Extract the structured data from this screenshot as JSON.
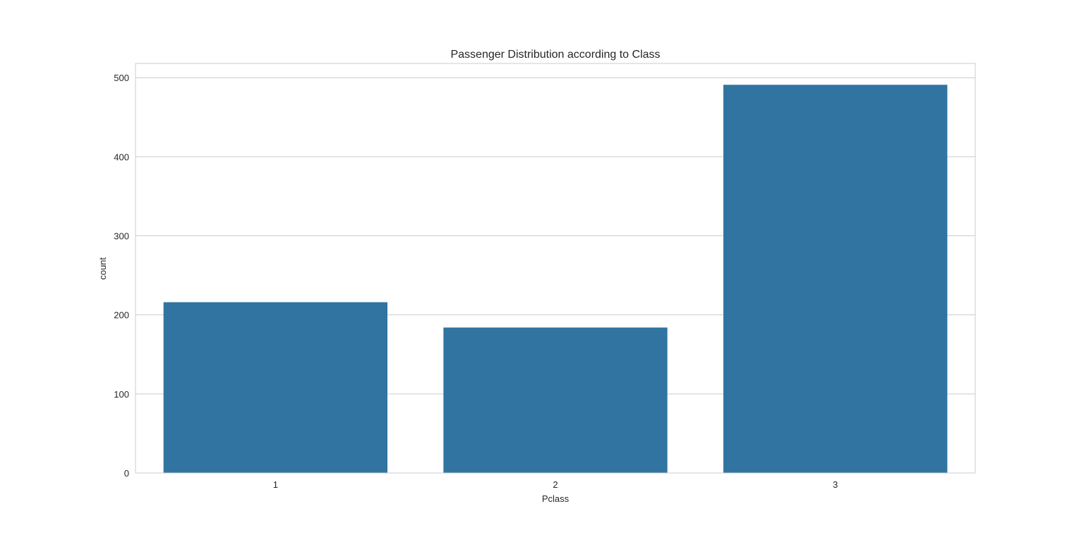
{
  "chart_data": {
    "type": "bar",
    "title": "Passenger Distribution according to Class",
    "xlabel": "Pclass",
    "ylabel": "count",
    "categories": [
      "1",
      "2",
      "3"
    ],
    "values": [
      216,
      184,
      491
    ],
    "ylim": [
      0,
      518
    ],
    "yticks": [
      0,
      100,
      200,
      300,
      400,
      500
    ],
    "grid": true,
    "legend": "none",
    "colors": {
      "bar": "#3274a1",
      "grid": "#cccccc",
      "frame": "#cccccc",
      "text": "#262626",
      "background": "#ffffff"
    }
  }
}
